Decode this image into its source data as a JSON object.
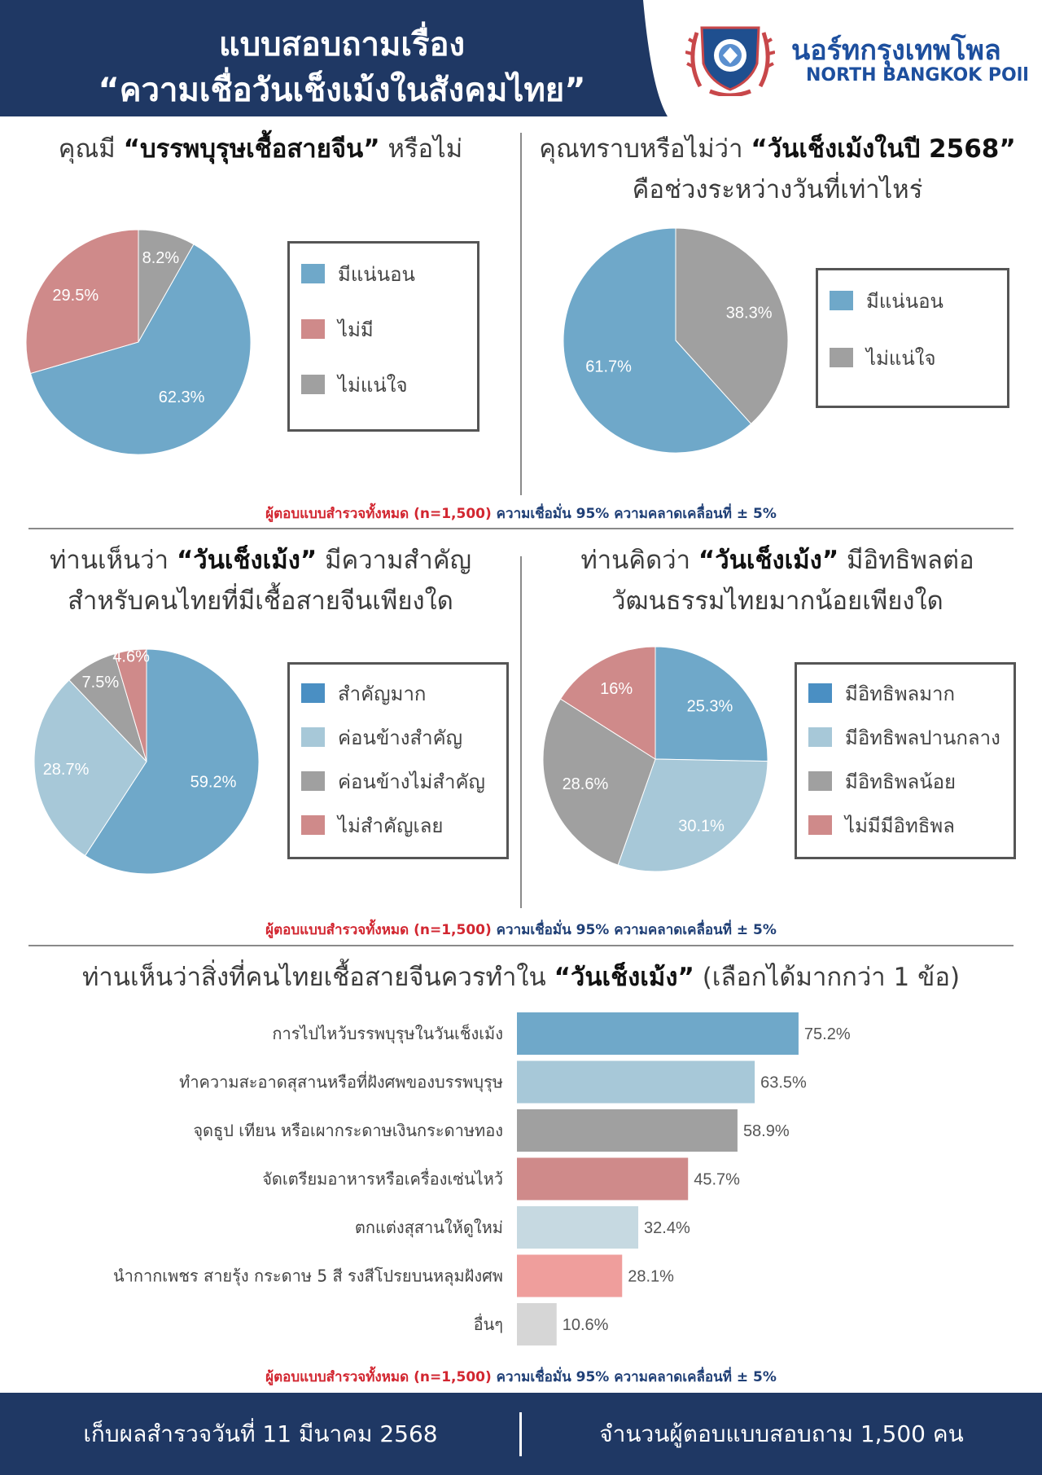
{
  "header": {
    "title_line1": "แบบสอบถามเรื่อง",
    "title_line2": "“ความเชื่อวันเช็งเม้งในสังคมไทย”",
    "brand_th": "นอร์ทกรุงเทพโพล",
    "brand_en": "NORTH BANGKOK POll",
    "logo_icon": "university-seal-icon"
  },
  "colors": {
    "navy": "#1f3864",
    "blue": "#6fa8c9",
    "blue_dark": "#4a8fc3",
    "light_blue": "#a7c8d8",
    "pale_blue": "#c6d9e1",
    "gray": "#a0a0a0",
    "light_gray": "#d6d6d6",
    "rose": "#cf8a8a",
    "pink": "#ef9e9c",
    "red": "#d22630"
  },
  "sections": {
    "q1": {
      "title_pre": "คุณมี ",
      "title_bold": "“บรรพบุรุษเชื้อสายจีน”",
      "title_post": " หรือไม่"
    },
    "q2": {
      "title_pre": "คุณทราบหรือไม่ว่า ",
      "title_bold": "“วันเช็งเม้งในปี 2568”",
      "title_line2": "คือช่วงระหว่างวันที่เท่าไหร่"
    },
    "q3": {
      "title_pre": "ท่านเห็นว่า ",
      "title_bold": "“วันเช็งเม้ง”",
      "title_post": " มีความสำคัญ",
      "title_line2": "สำหรับคนไทยที่มีเชื้อสายจีนเพียงใด"
    },
    "q4": {
      "title_pre": "ท่านคิดว่า ",
      "title_bold": "“วันเช็งเม้ง”",
      "title_post": " มีอิทธิพลต่อ",
      "title_line2": "วัฒนธรรมไทยมากน้อยเพียงใด"
    },
    "q5": {
      "title_pre": "ท่านเห็นว่าสิ่งที่คนไทยเชื้อสายจีนควรทำใน ",
      "title_bold": "“วันเช็งเม้ง”",
      "title_post": " (เลือกได้มากกว่า 1 ข้อ)"
    }
  },
  "footnote": {
    "red": "ผู้ตอบแบบสำรวจทั้งหมด (n=1,500)",
    "blue": " ความเชื่อมั่น 95% ความคลาดเคลื่อนที่ ± 5%"
  },
  "footer": {
    "left": "เก็บผลสำรวจวันที่ 11 มีนาคม 2568",
    "right": "จำนวนผู้ตอบแบบสอบถาม 1,500 คน"
  },
  "chart_data": [
    {
      "type": "pie",
      "title": "คุณมี “บรรพบุรุษเชื้อสายจีน” หรือไม่",
      "categories": [
        "มีแน่นอน",
        "ไม่มี",
        "ไม่แน่ใจ"
      ],
      "values": [
        62.3,
        29.5,
        8.2
      ],
      "labels": [
        "62.3%",
        "29.5%",
        "8.2%"
      ],
      "colors": [
        "#6fa8c9",
        "#cf8a8a",
        "#a0a0a0"
      ],
      "legend": "right"
    },
    {
      "type": "pie",
      "title": "คุณทราบหรือไม่ว่า “วันเช็งเม้งในปี 2568” คือช่วงระหว่างวันที่เท่าไหร่",
      "categories": [
        "มีแน่นอน",
        "ไม่แน่ใจ"
      ],
      "values": [
        61.7,
        38.3
      ],
      "labels": [
        "61.7%",
        "38.3%"
      ],
      "colors": [
        "#6fa8c9",
        "#a0a0a0"
      ],
      "legend": "right"
    },
    {
      "type": "pie",
      "title": "ท่านเห็นว่า “วันเช็งเม้ง” มีความสำคัญสำหรับคนไทยที่มีเชื้อสายจีนเพียงใด",
      "categories": [
        "สำคัญมาก",
        "ค่อนข้างสำคัญ",
        "ค่อนข้างไม่สำคัญ",
        "ไม่สำคัญเลย"
      ],
      "values": [
        59.2,
        28.7,
        7.5,
        4.6
      ],
      "labels": [
        "59.2%",
        "28.7%",
        "7.5%",
        "4.6%"
      ],
      "colors": [
        "#6fa8c9",
        "#a7c8d8",
        "#a0a0a0",
        "#cf8a8a"
      ],
      "legend_colors": [
        "#4a8fc3",
        "#a7c8d8",
        "#a0a0a0",
        "#cf8a8a"
      ],
      "legend": "right"
    },
    {
      "type": "pie",
      "title": "ท่านคิดว่า “วันเช็งเม้ง” มีอิทธิพลต่อวัฒนธรรมไทยมากน้อยเพียงใด",
      "categories": [
        "มีอิทธิพลมาก",
        "มีอิทธิพลปานกลาง",
        "มีอิทธิพลน้อย",
        "ไม่มีมีอิทธิพล"
      ],
      "values": [
        25.3,
        30.1,
        28.6,
        16
      ],
      "labels": [
        "25.3%",
        "30.1%",
        "28.6%",
        "16%"
      ],
      "colors": [
        "#6fa8c9",
        "#a7c8d8",
        "#a0a0a0",
        "#cf8a8a"
      ],
      "legend_colors": [
        "#4a8fc3",
        "#a7c8d8",
        "#a0a0a0",
        "#cf8a8a"
      ],
      "legend": "right"
    },
    {
      "type": "bar",
      "orientation": "horizontal",
      "title": "ท่านเห็นว่าสิ่งที่คนไทยเชื้อสายจีนควรทำใน “วันเช็งเม้ง” (เลือกได้มากกว่า 1 ข้อ)",
      "categories": [
        "การไปไหว้บรรพบุรุษในวันเช็งเม้ง",
        "ทำความสะอาดสุสานหรือที่ฝังศพของบรรพบุรุษ",
        "จุดธูป เทียน หรือเผากระดาษเงินกระดาษทอง",
        "จัดเตรียมอาหารหรือเครื่องเซ่นไหว้",
        "ตกแต่งสุสานให้ดูใหม่",
        "นำกากเพชร สายรุ้ง กระดาษ 5 สี รงสีโปรยบนหลุมฝังศพ",
        "อื่นๆ"
      ],
      "values": [
        75.2,
        63.5,
        58.9,
        45.7,
        32.4,
        28.1,
        10.6
      ],
      "labels": [
        "75.2%",
        "63.5%",
        "58.9%",
        "45.7%",
        "32.4%",
        "28.1%",
        "10.6%"
      ],
      "colors": [
        "#6fa8c9",
        "#a7c8d8",
        "#a0a0a0",
        "#cf8a8a",
        "#c6d9e1",
        "#ef9e9c",
        "#d6d6d6"
      ],
      "grid": false
    }
  ]
}
